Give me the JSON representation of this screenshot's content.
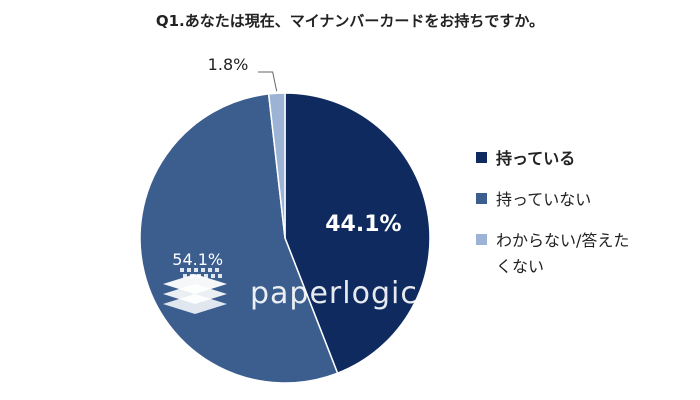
{
  "chart_data": {
    "type": "pie",
    "title": "Q1.あなたは現在、マイナンバーカードをお持ちですか。",
    "slices": [
      {
        "label": "持っている",
        "value": 44.1,
        "value_label": "44.1%",
        "color": "#0e2a5e",
        "bold": true
      },
      {
        "label": "持っていない",
        "value": 54.1,
        "value_label": "54.1%",
        "color": "#3b5e8f",
        "bold": false
      },
      {
        "label": "わからない/答えたくない",
        "value": 1.8,
        "value_label": "1.8%",
        "color": "#9db3d6",
        "bold": false
      }
    ],
    "legend_position": "right"
  },
  "watermark": {
    "text": "paperlogic",
    "logo": "paperlogic-logo"
  }
}
